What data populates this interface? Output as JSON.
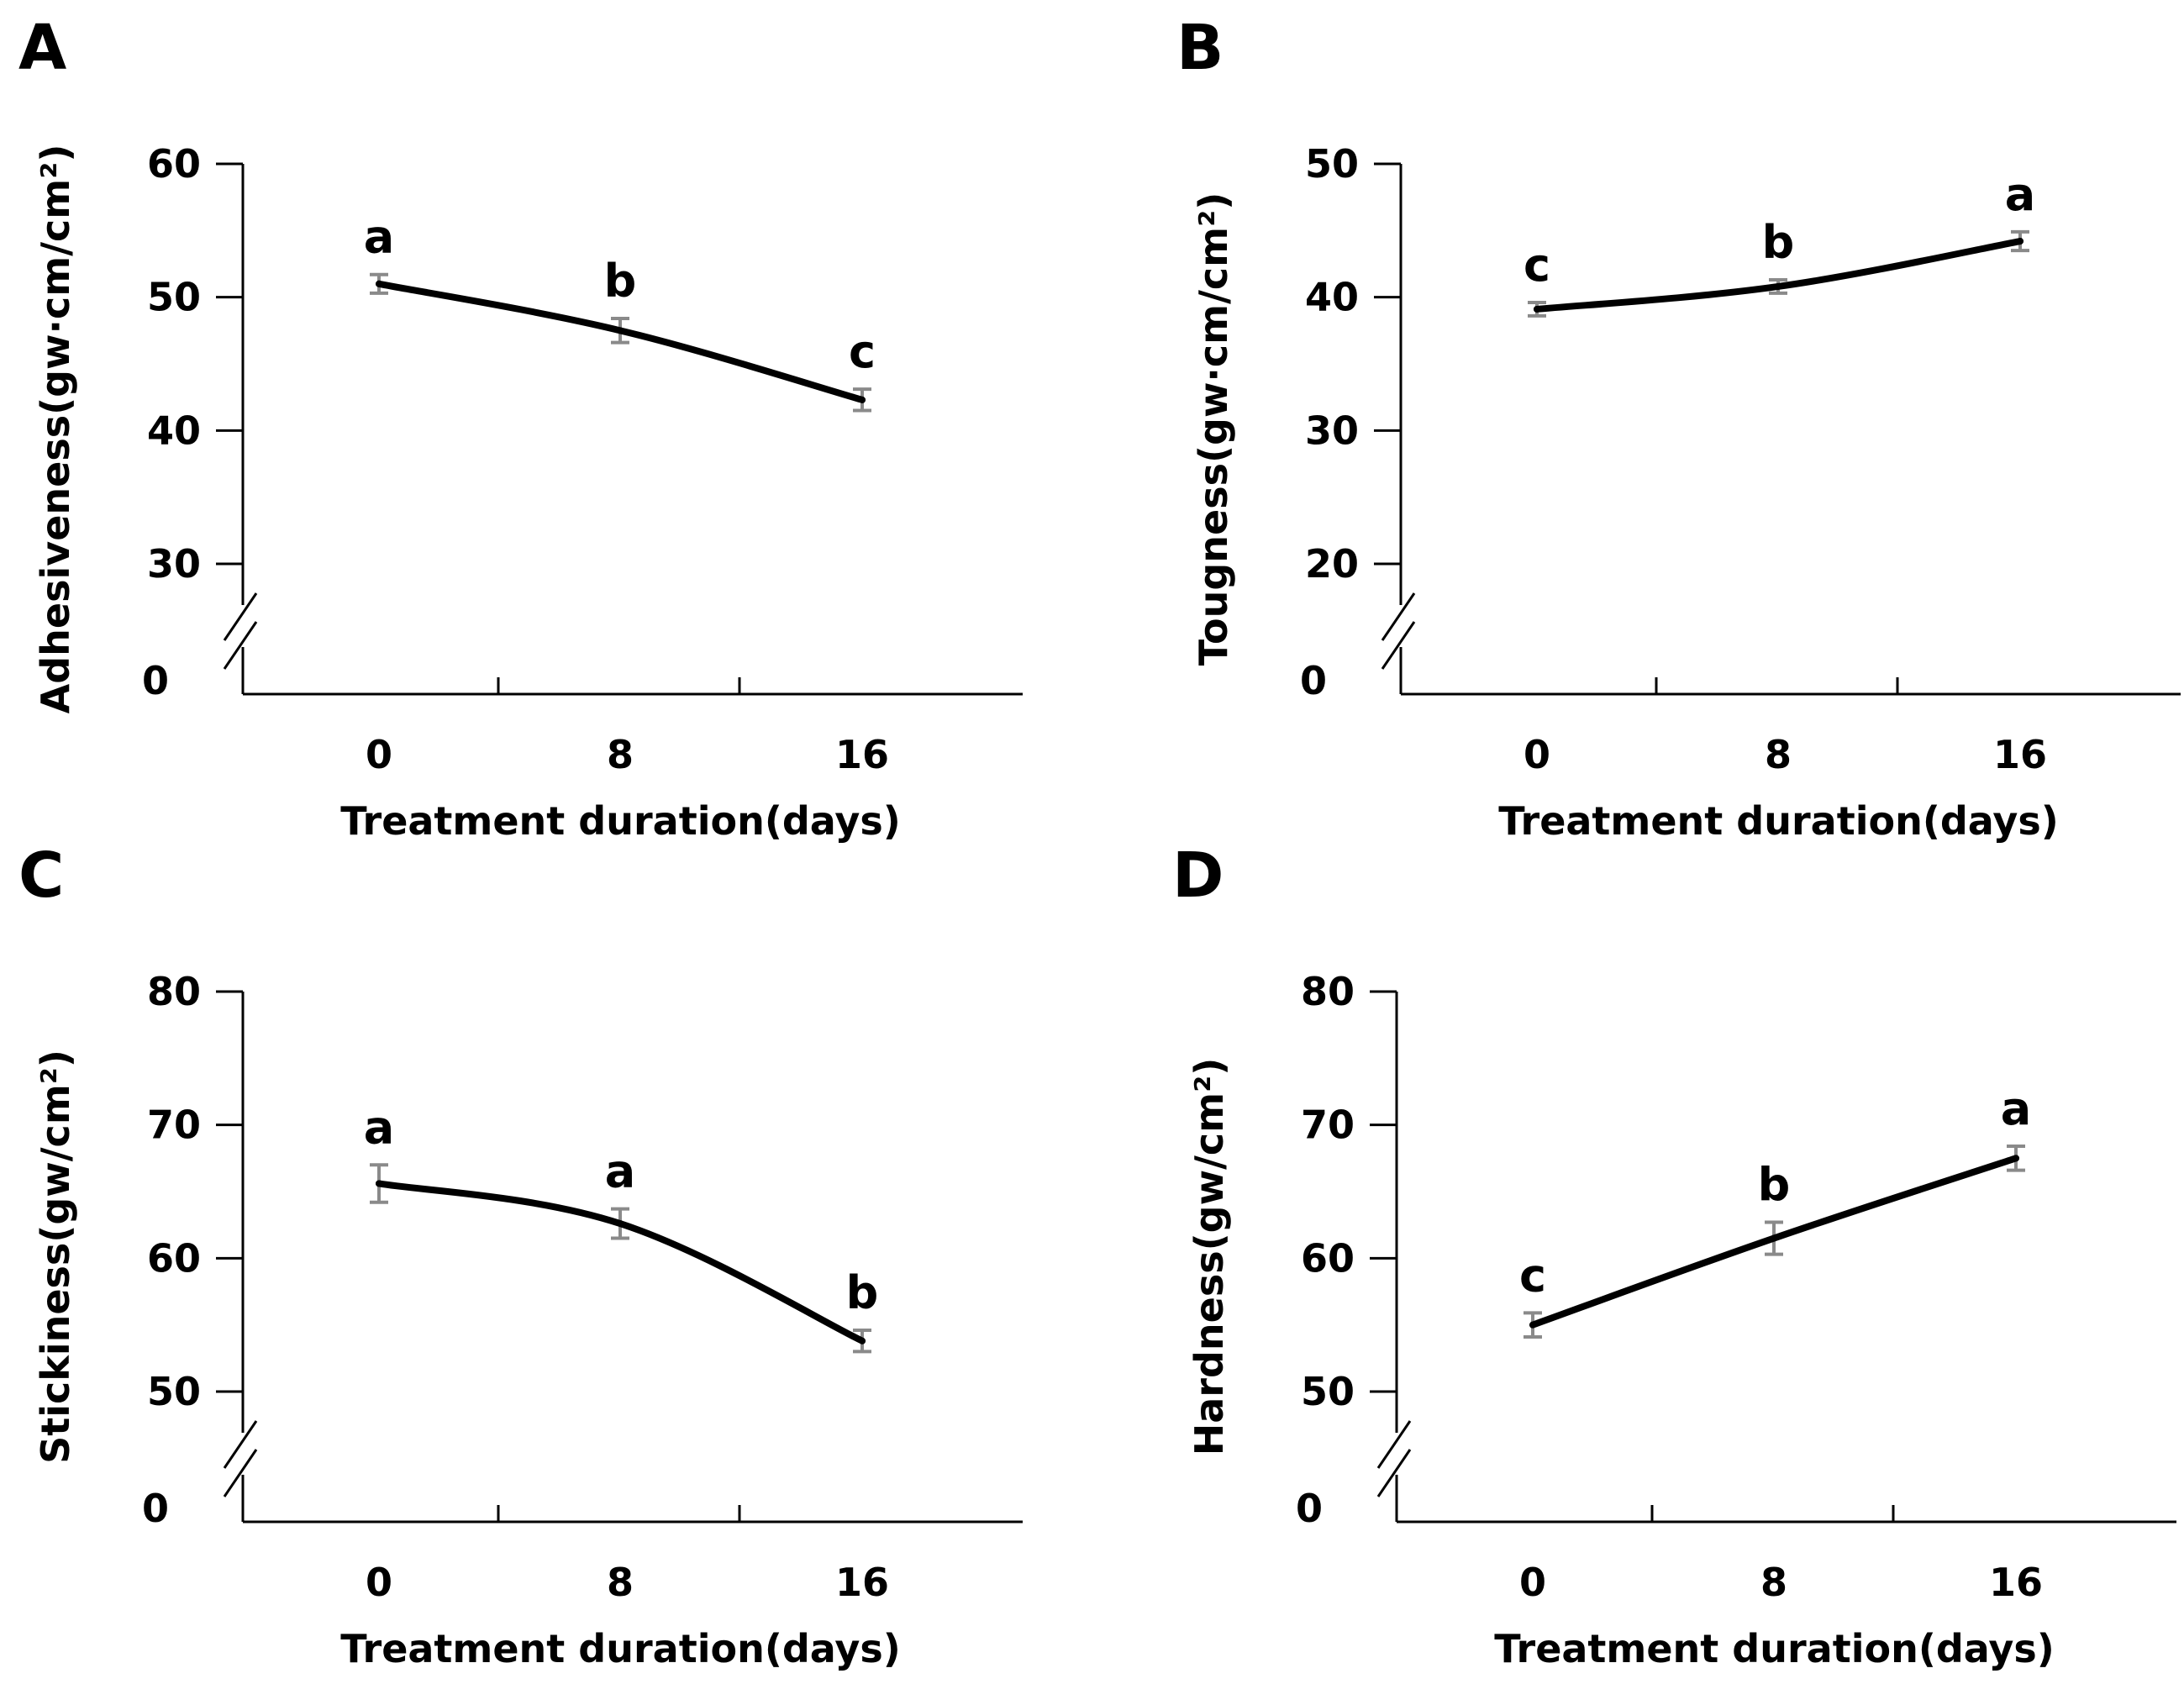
{
  "chart_data": [
    {
      "panel": "A",
      "type": "line",
      "xlabel": "Treatment duration(days)",
      "ylabel": "Adhesiveness(gw·cm/cm²)",
      "categories": [
        "0",
        "8",
        "16"
      ],
      "values": [
        51.0,
        47.5,
        42.3
      ],
      "errors": [
        0.7,
        0.9,
        0.8
      ],
      "letters": [
        "a",
        "b",
        "c"
      ],
      "yticks": [
        60,
        50,
        40,
        30
      ],
      "ylim": [
        30,
        60
      ],
      "axis_break": true,
      "break_label": "0",
      "grid": false
    },
    {
      "panel": "B",
      "type": "line",
      "xlabel": "Treatment duration(days)",
      "ylabel": "Tougness(gw·cm/cm²)",
      "categories": [
        "0",
        "8",
        "16"
      ],
      "values": [
        39.1,
        40.8,
        44.2
      ],
      "errors": [
        0.5,
        0.5,
        0.7
      ],
      "letters": [
        "c",
        "b",
        "a"
      ],
      "yticks": [
        50,
        40,
        30,
        20
      ],
      "ylim": [
        20,
        50
      ],
      "axis_break": true,
      "break_label": "0",
      "grid": false
    },
    {
      "panel": "C",
      "type": "line",
      "xlabel": "Treatment duration(days)",
      "ylabel": "Stickiness(gw/cm²)",
      "categories": [
        "0",
        "8",
        "16"
      ],
      "values": [
        65.6,
        62.6,
        53.8
      ],
      "errors": [
        1.4,
        1.1,
        0.8
      ],
      "letters": [
        "a",
        "a",
        "b"
      ],
      "yticks": [
        80,
        70,
        60,
        50
      ],
      "ylim": [
        50,
        80
      ],
      "axis_break": true,
      "break_label": "0",
      "grid": false
    },
    {
      "panel": "D",
      "type": "line",
      "xlabel": "Treatment duration(days)",
      "ylabel": "Hardness(gw/cm²)",
      "categories": [
        "0",
        "8",
        "16"
      ],
      "values": [
        55.0,
        61.5,
        67.5
      ],
      "errors": [
        0.9,
        1.2,
        0.9
      ],
      "letters": [
        "c",
        "b",
        "a"
      ],
      "yticks": [
        80,
        70,
        60,
        50
      ],
      "ylim": [
        50,
        80
      ],
      "axis_break": true,
      "break_label": "0",
      "grid": false
    }
  ]
}
